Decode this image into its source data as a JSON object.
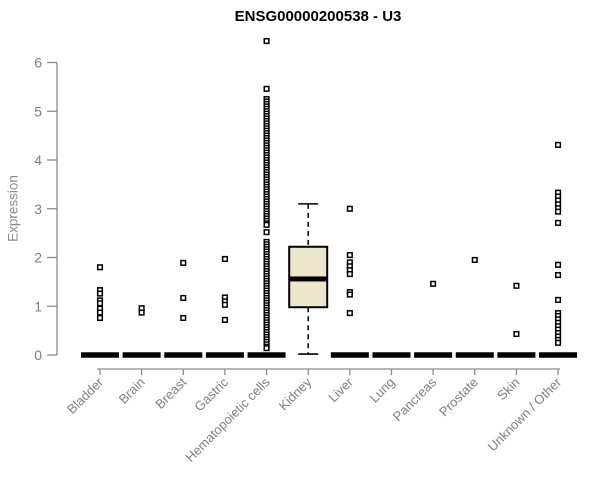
{
  "chart_data": {
    "type": "boxplot",
    "title": "ENSG00000200538 - U3",
    "ylabel": "Expression",
    "xlabel": "",
    "ylim": [
      0,
      6.6
    ],
    "yticks": [
      0,
      1,
      2,
      3,
      4,
      5,
      6
    ],
    "grid": false,
    "marker": "open-square",
    "categories": [
      "Bladder",
      "Brain",
      "Breast",
      "Gastric",
      "Hematopoietic cells",
      "Kidney",
      "Liver",
      "Lung",
      "Pancreas",
      "Prostate",
      "Skin",
      "Unknown / Other"
    ],
    "style": {
      "box_fill": "#ece7cb",
      "box_border": "#000000",
      "axis_color": "#8a8a8a",
      "text_color": "#7f7f7f",
      "title_color": "#000000",
      "background": "#ffffff"
    },
    "boxes": [
      {
        "category": "Bladder",
        "q1": 0,
        "median": 0,
        "q3": 0,
        "whisker_low": 0,
        "whisker_high": 0,
        "points": [
          1.8,
          1.33,
          1.26,
          1.12,
          1.06,
          0.95,
          0.87,
          0.76
        ]
      },
      {
        "category": "Brain",
        "q1": 0,
        "median": 0,
        "q3": 0,
        "whisker_low": 0,
        "whisker_high": 0,
        "points": [
          0.96,
          0.87
        ]
      },
      {
        "category": "Breast",
        "q1": 0,
        "median": 0,
        "q3": 0,
        "whisker_low": 0,
        "whisker_high": 0,
        "points": [
          1.89,
          1.17,
          0.76
        ]
      },
      {
        "category": "Gastric",
        "q1": 0,
        "median": 0,
        "q3": 0,
        "whisker_low": 0,
        "whisker_high": 0,
        "points": [
          1.97,
          1.18,
          1.1,
          1.03,
          0.72
        ]
      },
      {
        "category": "Hematopoietic cells",
        "q1": 0,
        "median": 0,
        "q3": 0,
        "whisker_low": 0,
        "whisker_high": 0,
        "points": [
          6.44,
          5.46,
          5.25,
          5.2,
          5.15,
          5.1,
          5.05,
          5.0,
          4.95,
          4.9,
          4.85,
          4.8,
          4.75,
          4.7,
          4.65,
          4.6,
          4.55,
          4.5,
          4.45,
          4.4,
          4.35,
          4.3,
          4.25,
          4.2,
          4.15,
          4.1,
          4.05,
          4.0,
          3.95,
          3.9,
          3.85,
          3.8,
          3.75,
          3.7,
          3.65,
          3.6,
          3.55,
          3.5,
          3.45,
          3.4,
          3.35,
          3.3,
          3.25,
          3.2,
          3.15,
          3.1,
          3.05,
          3.0,
          2.95,
          2.9,
          2.85,
          2.8,
          2.75,
          2.7,
          2.67,
          2.52,
          2.32,
          2.27,
          2.22,
          2.17,
          2.12,
          2.07,
          2.02,
          1.97,
          1.92,
          1.87,
          1.82,
          1.77,
          1.72,
          1.67,
          1.62,
          1.57,
          1.52,
          1.47,
          1.42,
          1.37,
          1.32,
          1.27,
          1.22,
          1.17,
          1.12,
          1.07,
          1.02,
          0.97,
          0.92,
          0.87,
          0.82,
          0.77,
          0.72,
          0.67,
          0.62,
          0.57,
          0.52,
          0.47,
          0.42,
          0.37,
          0.32,
          0.27,
          0.22,
          0.17,
          0.14
        ]
      },
      {
        "category": "Kidney",
        "q1": 0.98,
        "median": 1.56,
        "q3": 2.22,
        "whisker_low": 0.02,
        "whisker_high": 3.1,
        "points": []
      },
      {
        "category": "Liver",
        "q1": 0,
        "median": 0,
        "q3": 0,
        "whisker_low": 0,
        "whisker_high": 0,
        "points": [
          3.0,
          2.05,
          1.9,
          1.82,
          1.74,
          1.66,
          1.29,
          1.24,
          0.86
        ]
      },
      {
        "category": "Lung",
        "q1": 0,
        "median": 0,
        "q3": 0,
        "whisker_low": 0,
        "whisker_high": 0,
        "points": []
      },
      {
        "category": "Pancreas",
        "q1": 0,
        "median": 0,
        "q3": 0,
        "whisker_low": 0,
        "whisker_high": 0,
        "points": [
          1.46
        ]
      },
      {
        "category": "Prostate",
        "q1": 0,
        "median": 0,
        "q3": 0,
        "whisker_low": 0,
        "whisker_high": 0,
        "points": [
          1.95
        ]
      },
      {
        "category": "Skin",
        "q1": 0,
        "median": 0,
        "q3": 0,
        "whisker_low": 0,
        "whisker_high": 0,
        "points": [
          1.42,
          0.43
        ]
      },
      {
        "category": "Unknown / Other",
        "q1": 0,
        "median": 0,
        "q3": 0,
        "whisker_low": 0,
        "whisker_high": 0,
        "points": [
          4.31,
          3.33,
          3.25,
          3.17,
          3.09,
          3.01,
          2.94,
          2.71,
          1.85,
          1.64,
          1.13,
          0.86,
          0.8,
          0.73,
          0.66,
          0.59,
          0.52,
          0.45,
          0.38,
          0.31,
          0.25
        ]
      }
    ]
  }
}
